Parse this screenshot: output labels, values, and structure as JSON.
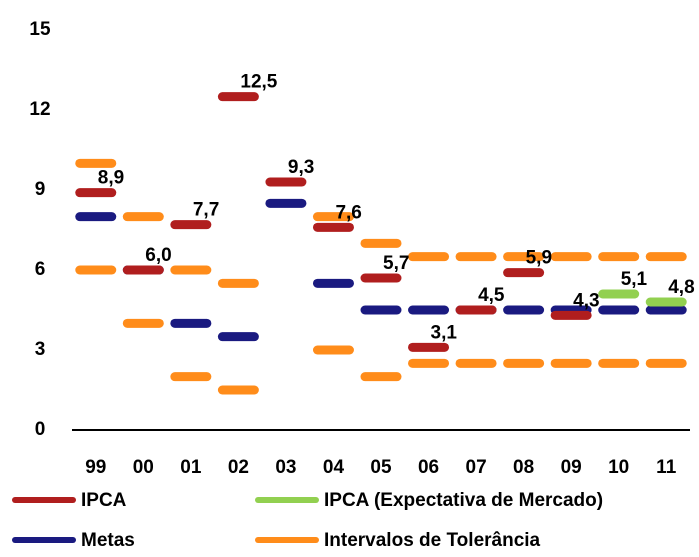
{
  "chart_data": {
    "type": "dash",
    "categories": [
      "99",
      "00",
      "01",
      "02",
      "03",
      "04",
      "05",
      "06",
      "07",
      "08",
      "09",
      "10",
      "11"
    ],
    "ylim": [
      0,
      15
    ],
    "yticks": [
      0,
      3,
      6,
      9,
      12,
      15
    ],
    "series": [
      {
        "name": "IPCA",
        "color": "#b01e1e",
        "values": [
          8.9,
          6.0,
          7.7,
          12.5,
          9.3,
          7.6,
          5.7,
          3.1,
          4.5,
          5.9,
          4.3,
          null,
          null
        ],
        "value_labels": [
          "8,9",
          "6,0",
          "7,7",
          "12,5",
          "9,3",
          "7,6",
          "5,7",
          "3,1",
          "4,5",
          "5,9",
          "4,3",
          null,
          null
        ]
      },
      {
        "name": "IPCA (Expectativa de Mercado)",
        "color": "#92d050",
        "values": [
          null,
          null,
          null,
          null,
          null,
          null,
          null,
          null,
          null,
          null,
          null,
          5.1,
          4.8
        ],
        "value_labels": [
          null,
          null,
          null,
          null,
          null,
          null,
          null,
          null,
          null,
          null,
          null,
          "5,1",
          "4,8"
        ]
      },
      {
        "name": "Metas",
        "color": "#1a1a80",
        "values": [
          8,
          6,
          4,
          3.5,
          8.5,
          5.5,
          4.5,
          4.5,
          4.5,
          4.5,
          4.5,
          4.5,
          4.5
        ]
      },
      {
        "name": "Intervalos de Tolerância",
        "color": "#ff8c1a",
        "upper": [
          10,
          8,
          6,
          5.5,
          null,
          8,
          7,
          6.5,
          6.5,
          6.5,
          6.5,
          6.5,
          6.5
        ],
        "lower": [
          6,
          4,
          2,
          1.5,
          null,
          3,
          2,
          2.5,
          2.5,
          2.5,
          2.5,
          2.5,
          2.5
        ]
      }
    ]
  }
}
